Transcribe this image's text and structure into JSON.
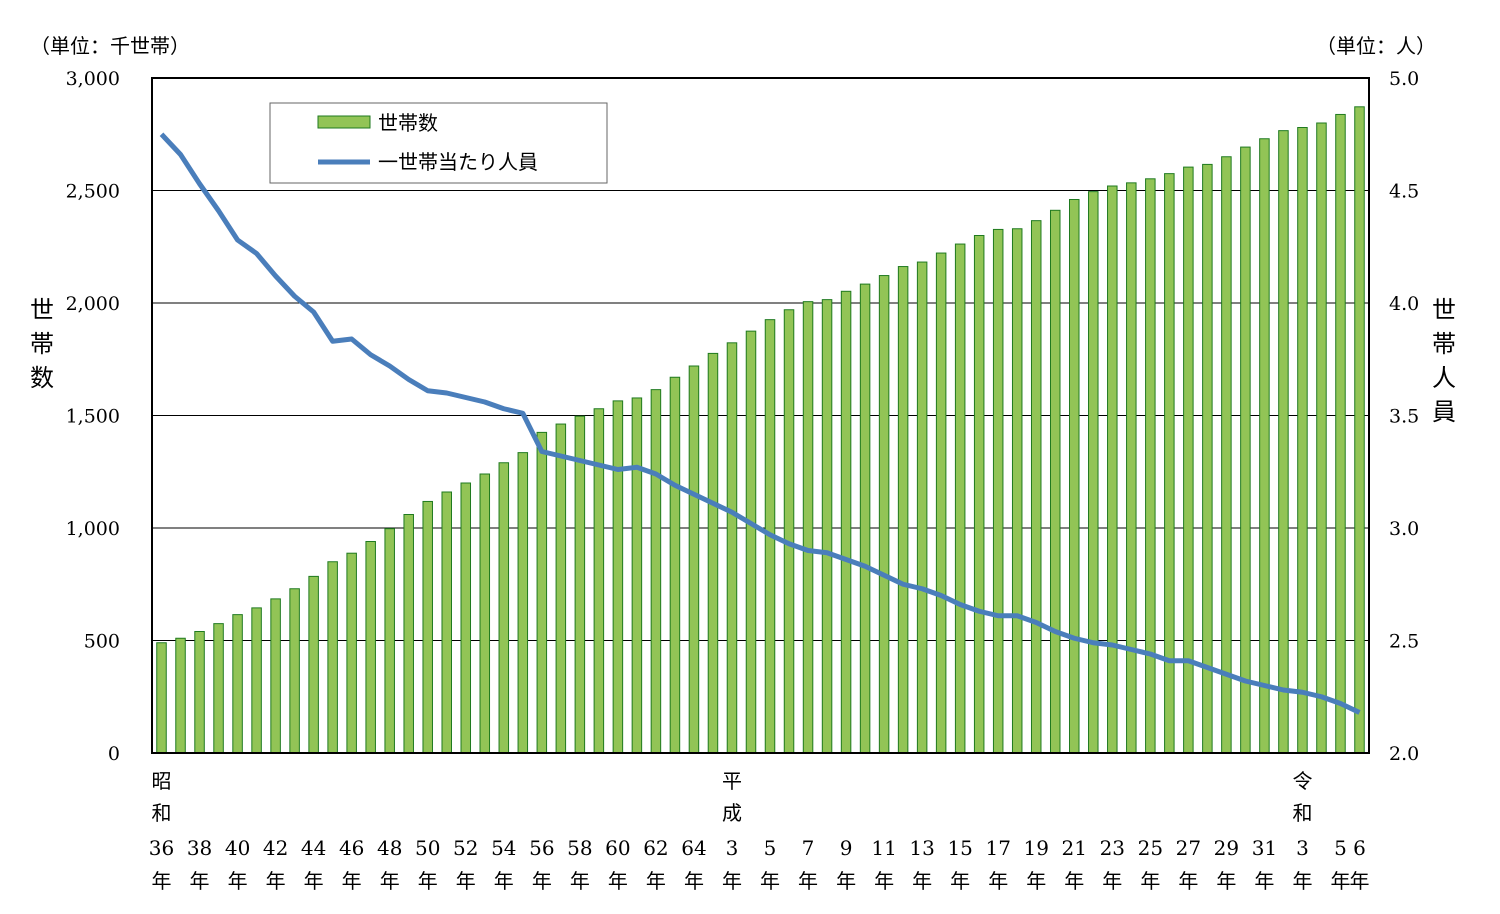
{
  "chart_data": {
    "type": "bar+line",
    "left_unit": "（単位：千世帯）",
    "right_unit": "（単位：人）",
    "left_axis_title": "世帯数",
    "right_axis_title": "世帯人員",
    "left_ylim": [
      0,
      3000
    ],
    "right_ylim": [
      2.0,
      5.0
    ],
    "left_ticks": [
      "0",
      "500",
      "1,000",
      "1,500",
      "2,000",
      "2,500",
      "3,000"
    ],
    "right_ticks": [
      "2.0",
      "2.5",
      "3.0",
      "3.5",
      "4.0",
      "4.5",
      "5.0"
    ],
    "grid": "horizontal",
    "legend_position": "top-left",
    "colors": {
      "bar_fill": "#92c456",
      "bar_stroke": "#1f7a1f",
      "line": "#4a7ebb"
    },
    "legend": {
      "bars": "世帯数",
      "line": "一世帯当たり人員"
    },
    "era_labels": [
      {
        "label": "昭和",
        "index": 0
      },
      {
        "label": "平成",
        "index": 30
      },
      {
        "label": "令和",
        "index": 60
      }
    ],
    "x_labels": [
      {
        "index": 0,
        "num": "36",
        "suffix": "年"
      },
      {
        "index": 2,
        "num": "38",
        "suffix": "年"
      },
      {
        "index": 4,
        "num": "40",
        "suffix": "年"
      },
      {
        "index": 6,
        "num": "42",
        "suffix": "年"
      },
      {
        "index": 8,
        "num": "44",
        "suffix": "年"
      },
      {
        "index": 10,
        "num": "46",
        "suffix": "年"
      },
      {
        "index": 12,
        "num": "48",
        "suffix": "年"
      },
      {
        "index": 14,
        "num": "50",
        "suffix": "年"
      },
      {
        "index": 16,
        "num": "52",
        "suffix": "年"
      },
      {
        "index": 18,
        "num": "54",
        "suffix": "年"
      },
      {
        "index": 20,
        "num": "56",
        "suffix": "年"
      },
      {
        "index": 22,
        "num": "58",
        "suffix": "年"
      },
      {
        "index": 24,
        "num": "60",
        "suffix": "年"
      },
      {
        "index": 26,
        "num": "62",
        "suffix": "年"
      },
      {
        "index": 28,
        "num": "64",
        "suffix": "年"
      },
      {
        "index": 30,
        "num": "3",
        "suffix": "年"
      },
      {
        "index": 32,
        "num": "5",
        "suffix": "年"
      },
      {
        "index": 34,
        "num": "7",
        "suffix": "年"
      },
      {
        "index": 36,
        "num": "9",
        "suffix": "年"
      },
      {
        "index": 38,
        "num": "11",
        "suffix": "年"
      },
      {
        "index": 40,
        "num": "13",
        "suffix": "年"
      },
      {
        "index": 42,
        "num": "15",
        "suffix": "年"
      },
      {
        "index": 44,
        "num": "17",
        "suffix": "年"
      },
      {
        "index": 46,
        "num": "19",
        "suffix": "年"
      },
      {
        "index": 48,
        "num": "21",
        "suffix": "年"
      },
      {
        "index": 50,
        "num": "23",
        "suffix": "年"
      },
      {
        "index": 52,
        "num": "25",
        "suffix": "年"
      },
      {
        "index": 54,
        "num": "27",
        "suffix": "年"
      },
      {
        "index": 56,
        "num": "29",
        "suffix": "年"
      },
      {
        "index": 58,
        "num": "31",
        "suffix": "年"
      },
      {
        "index": 60,
        "num": "3",
        "suffix": "年"
      },
      {
        "index": 62,
        "num": "5",
        "suffix": "年"
      },
      {
        "index": 63,
        "num": "6",
        "suffix": "年"
      }
    ],
    "series": [
      {
        "name": "世帯数",
        "type": "bar",
        "values": [
          490,
          510,
          540,
          575,
          615,
          645,
          685,
          730,
          785,
          850,
          888,
          940,
          997,
          1060,
          1118,
          1160,
          1200,
          1240,
          1290,
          1335,
          1425,
          1462,
          1497,
          1530,
          1565,
          1578,
          1615,
          1670,
          1720,
          1776,
          1823,
          1875,
          1926,
          1970,
          2006,
          2015,
          2052,
          2084,
          2122,
          2162,
          2182,
          2222,
          2262,
          2300,
          2327,
          2330,
          2366,
          2412,
          2460,
          2495,
          2520,
          2534,
          2552,
          2575,
          2604,
          2616,
          2650,
          2693,
          2730,
          2766,
          2780,
          2800,
          2838,
          2872
        ]
      },
      {
        "name": "一世帯当たり人員",
        "type": "line",
        "values": [
          4.75,
          4.66,
          4.53,
          4.41,
          4.28,
          4.22,
          4.12,
          4.03,
          3.96,
          3.83,
          3.84,
          3.77,
          3.72,
          3.66,
          3.61,
          3.6,
          3.58,
          3.56,
          3.53,
          3.51,
          3.34,
          3.32,
          3.3,
          3.28,
          3.26,
          3.27,
          3.24,
          3.19,
          3.15,
          3.11,
          3.07,
          3.02,
          2.97,
          2.93,
          2.9,
          2.89,
          2.86,
          2.83,
          2.79,
          2.75,
          2.73,
          2.7,
          2.66,
          2.63,
          2.61,
          2.61,
          2.58,
          2.54,
          2.51,
          2.49,
          2.48,
          2.46,
          2.44,
          2.41,
          2.41,
          2.38,
          2.35,
          2.32,
          2.3,
          2.28,
          2.27,
          2.25,
          2.22,
          2.18
        ]
      }
    ]
  }
}
